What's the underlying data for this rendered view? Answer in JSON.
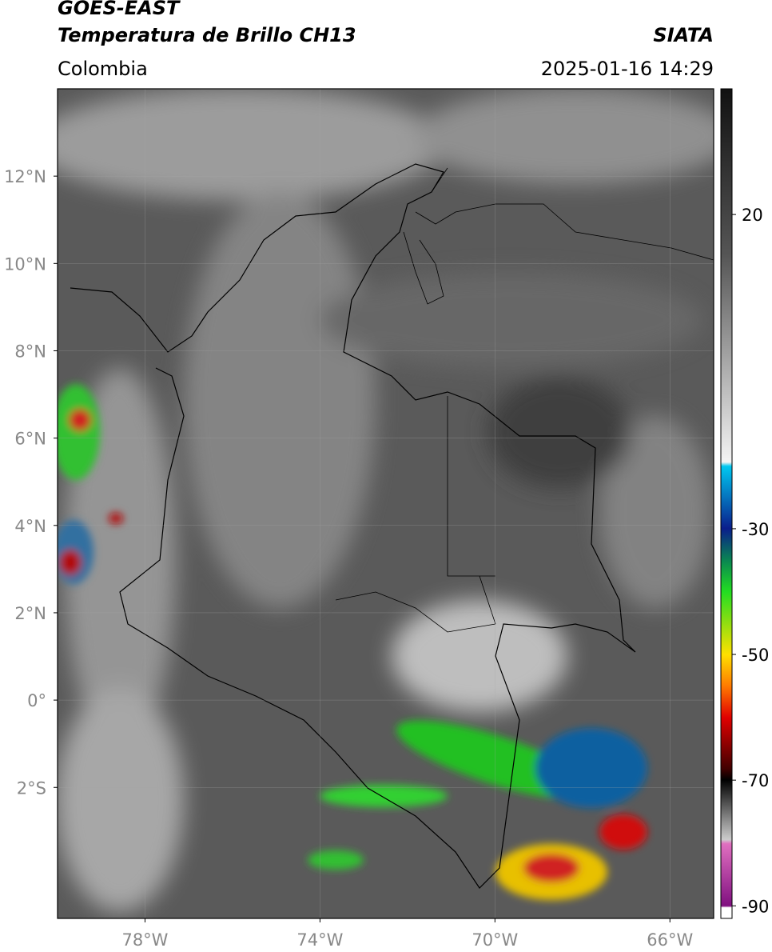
{
  "header": {
    "satellite": "GOES-EAST",
    "product": "Temperatura de Brillo CH13",
    "source": "SIATA",
    "region": "Colombia",
    "datetime": "2025-01-16 14:29"
  },
  "map": {
    "xlim": [
      -80,
      -65
    ],
    "ylim": [
      -5,
      14
    ],
    "grid": true,
    "xticks": [
      {
        "value": -78,
        "label": "78°W"
      },
      {
        "value": -74,
        "label": "74°W"
      },
      {
        "value": -70,
        "label": "70°W"
      },
      {
        "value": -66,
        "label": "66°W"
      }
    ],
    "yticks": [
      {
        "value": 12,
        "label": "12°N"
      },
      {
        "value": 10,
        "label": "10°N"
      },
      {
        "value": 8,
        "label": "8°N"
      },
      {
        "value": 6,
        "label": "6°N"
      },
      {
        "value": 4,
        "label": "4°N"
      },
      {
        "value": 2,
        "label": "2°N"
      },
      {
        "value": 0,
        "label": "0°"
      },
      {
        "value": -2,
        "label": "2°S"
      }
    ]
  },
  "colorbar": {
    "lim": [
      -92,
      40
    ],
    "ticks": [
      20,
      -30,
      -50,
      -70,
      -90
    ]
  }
}
